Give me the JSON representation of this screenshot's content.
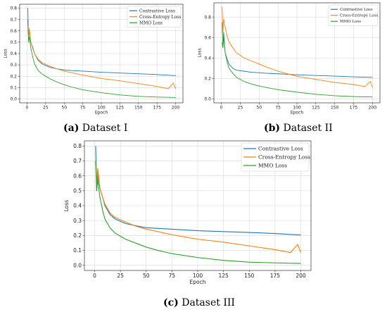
{
  "chart_data": [
    {
      "type": "line",
      "panel_letter": "(a)",
      "caption": "Dataset I",
      "xlabel": "Epoch",
      "ylabel": "Loss",
      "xlim": [
        0,
        200
      ],
      "ylim": [
        0,
        0.8
      ],
      "xticks": [
        0,
        25,
        50,
        75,
        100,
        125,
        150,
        175,
        200
      ],
      "yticks": [
        0.0,
        0.1,
        0.2,
        0.3,
        0.4,
        0.5,
        0.6,
        0.7,
        0.8
      ],
      "grid": true,
      "legend_position": "top-right",
      "series": [
        {
          "name": "Contrastive Loss",
          "color": "#1f77b4",
          "x": [
            1,
            2,
            3,
            5,
            8,
            10,
            15,
            20,
            30,
            40,
            50,
            60,
            75,
            100,
            125,
            150,
            175,
            200
          ],
          "y": [
            0.8,
            0.55,
            0.6,
            0.5,
            0.44,
            0.4,
            0.34,
            0.31,
            0.28,
            0.265,
            0.255,
            0.25,
            0.245,
            0.235,
            0.228,
            0.222,
            0.215,
            0.205
          ]
        },
        {
          "name": "Cross-Entropy Loss",
          "color": "#ff7f0e",
          "x": [
            1,
            2,
            3,
            5,
            8,
            10,
            15,
            20,
            30,
            40,
            50,
            60,
            75,
            100,
            125,
            150,
            175,
            190,
            197,
            200
          ],
          "y": [
            0.7,
            0.55,
            0.62,
            0.5,
            0.45,
            0.4,
            0.35,
            0.32,
            0.29,
            0.265,
            0.245,
            0.23,
            0.21,
            0.18,
            0.16,
            0.135,
            0.11,
            0.09,
            0.14,
            0.09
          ]
        },
        {
          "name": "MMO Loss",
          "color": "#2ca02c",
          "x": [
            1,
            2,
            3,
            5,
            8,
            10,
            15,
            20,
            30,
            40,
            50,
            60,
            75,
            100,
            125,
            150,
            175,
            200
          ],
          "y": [
            0.7,
            0.5,
            0.55,
            0.45,
            0.36,
            0.31,
            0.25,
            0.22,
            0.18,
            0.15,
            0.125,
            0.105,
            0.08,
            0.055,
            0.035,
            0.022,
            0.016,
            0.012
          ]
        }
      ]
    },
    {
      "type": "line",
      "panel_letter": "(b)",
      "caption": "Dataset II",
      "xlabel": "Epoch",
      "ylabel": "Loss",
      "xlim": [
        0,
        200
      ],
      "ylim": [
        0,
        0.9
      ],
      "xticks": [
        0,
        25,
        50,
        75,
        100,
        125,
        150,
        175,
        200
      ],
      "yticks": [
        0.0,
        0.2,
        0.4,
        0.6,
        0.8
      ],
      "grid": true,
      "legend_position": "top-right",
      "series": [
        {
          "name": "Contrastive Loss",
          "color": "#1f77b4",
          "x": [
            1,
            2,
            3,
            5,
            8,
            10,
            15,
            20,
            30,
            40,
            50,
            60,
            75,
            100,
            125,
            150,
            175,
            200
          ],
          "y": [
            0.55,
            0.5,
            0.65,
            0.45,
            0.38,
            0.34,
            0.3,
            0.28,
            0.27,
            0.26,
            0.255,
            0.25,
            0.245,
            0.235,
            0.228,
            0.222,
            0.215,
            0.21
          ]
        },
        {
          "name": "Cross-Entropy Loss",
          "color": "#ff7f0e",
          "x": [
            1,
            2,
            3,
            5,
            8,
            10,
            15,
            20,
            30,
            40,
            50,
            60,
            75,
            100,
            125,
            150,
            175,
            190,
            197,
            200
          ],
          "y": [
            0.9,
            0.65,
            0.78,
            0.7,
            0.6,
            0.56,
            0.5,
            0.45,
            0.4,
            0.37,
            0.34,
            0.31,
            0.27,
            0.22,
            0.19,
            0.16,
            0.14,
            0.12,
            0.17,
            0.11
          ]
        },
        {
          "name": "MMO Loss",
          "color": "#2ca02c",
          "x": [
            1,
            2,
            3,
            5,
            8,
            10,
            15,
            20,
            30,
            40,
            50,
            60,
            75,
            100,
            125,
            150,
            175,
            200
          ],
          "y": [
            0.75,
            0.5,
            0.6,
            0.45,
            0.35,
            0.3,
            0.25,
            0.21,
            0.17,
            0.145,
            0.125,
            0.11,
            0.09,
            0.065,
            0.045,
            0.03,
            0.022,
            0.018
          ]
        }
      ]
    },
    {
      "type": "line",
      "panel_letter": "(c)",
      "caption": "Dataset III",
      "xlabel": "Epoch",
      "ylabel": "Loss",
      "xlim": [
        0,
        200
      ],
      "ylim": [
        0,
        0.8
      ],
      "xticks": [
        0,
        25,
        50,
        75,
        100,
        125,
        150,
        175,
        200
      ],
      "yticks": [
        0.0,
        0.1,
        0.2,
        0.3,
        0.4,
        0.5,
        0.6,
        0.7,
        0.8
      ],
      "grid": true,
      "legend_position": "top-right",
      "series": [
        {
          "name": "Contrastive Loss",
          "color": "#1f77b4",
          "x": [
            1,
            2,
            3,
            5,
            8,
            10,
            15,
            20,
            30,
            40,
            50,
            60,
            75,
            100,
            125,
            150,
            175,
            200
          ],
          "y": [
            0.8,
            0.5,
            0.62,
            0.52,
            0.45,
            0.4,
            0.34,
            0.31,
            0.28,
            0.265,
            0.252,
            0.248,
            0.242,
            0.232,
            0.226,
            0.22,
            0.213,
            0.203
          ]
        },
        {
          "name": "Cross-Entropy Loss",
          "color": "#ff7f0e",
          "x": [
            1,
            2,
            3,
            5,
            8,
            10,
            15,
            20,
            30,
            40,
            50,
            60,
            75,
            100,
            125,
            150,
            175,
            190,
            197,
            200
          ],
          "y": [
            0.7,
            0.55,
            0.65,
            0.52,
            0.45,
            0.41,
            0.35,
            0.32,
            0.29,
            0.262,
            0.242,
            0.228,
            0.205,
            0.175,
            0.155,
            0.13,
            0.105,
            0.085,
            0.14,
            0.085
          ]
        },
        {
          "name": "MMO Loss",
          "color": "#2ca02c",
          "x": [
            1,
            2,
            3,
            5,
            8,
            10,
            15,
            20,
            30,
            40,
            50,
            60,
            75,
            100,
            125,
            150,
            175,
            200
          ],
          "y": [
            0.7,
            0.5,
            0.58,
            0.46,
            0.36,
            0.31,
            0.25,
            0.215,
            0.175,
            0.148,
            0.122,
            0.102,
            0.078,
            0.052,
            0.033,
            0.021,
            0.016,
            0.012
          ]
        }
      ]
    }
  ]
}
